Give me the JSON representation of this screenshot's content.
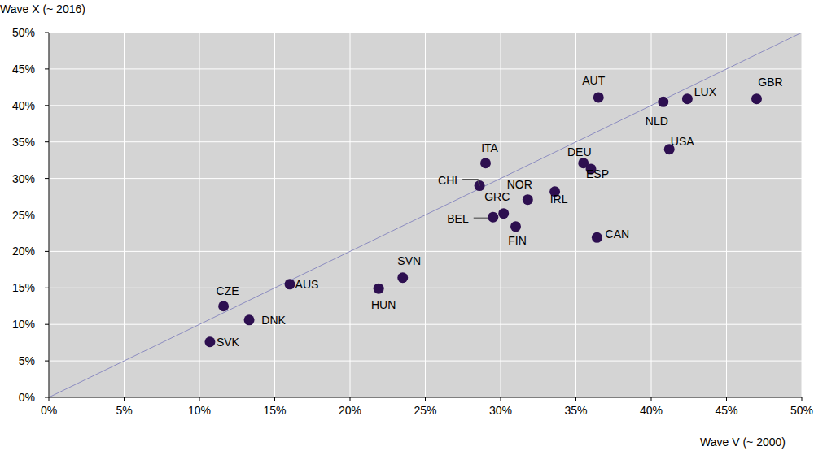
{
  "chart_data": {
    "type": "scatter",
    "x_label": "Wave V (~ 2000)",
    "y_label": "Wave X (~ 2016)",
    "labels": [
      "CZE",
      "SVK",
      "DNK",
      "AUS",
      "HUN",
      "SVN",
      "ITA",
      "CHL",
      "GRC",
      "BEL",
      "FIN",
      "NOR",
      "IRL",
      "DEU",
      "ESP",
      "CAN",
      "AUT",
      "NLD",
      "LUX",
      "USA",
      "GBR"
    ],
    "x": [
      11.6,
      10.7,
      13.3,
      16.0,
      21.9,
      23.5,
      29.0,
      28.6,
      30.2,
      29.5,
      31.0,
      31.8,
      33.6,
      35.5,
      36.0,
      36.4,
      36.5,
      40.8,
      42.4,
      41.2,
      47.0
    ],
    "values": [
      12.5,
      7.6,
      10.6,
      15.5,
      14.9,
      16.4,
      32.1,
      29.0,
      25.2,
      24.7,
      23.4,
      27.1,
      28.2,
      32.1,
      31.3,
      21.9,
      41.1,
      40.5,
      40.9,
      34.0,
      40.9
    ],
    "color": "#2d0f50",
    "marker": "circle",
    "grid": true,
    "xlim": [
      0,
      50
    ],
    "ylim": [
      0,
      50
    ],
    "xticks": [
      {
        "value": 0,
        "label": "0%"
      },
      {
        "value": 5,
        "label": "5%"
      },
      {
        "value": 10,
        "label": "10%"
      },
      {
        "value": 15,
        "label": "15%"
      },
      {
        "value": 20,
        "label": "20%"
      },
      {
        "value": 25,
        "label": "25%"
      },
      {
        "value": 30,
        "label": "30%"
      },
      {
        "value": 35,
        "label": "35%"
      },
      {
        "value": 40,
        "label": "40%"
      },
      {
        "value": 45,
        "label": "45%"
      },
      {
        "value": 50,
        "label": "50%"
      }
    ],
    "yticks": [
      {
        "value": 0,
        "label": "0%"
      },
      {
        "value": 5,
        "label": "5%"
      },
      {
        "value": 10,
        "label": "10%"
      },
      {
        "value": 15,
        "label": "15%"
      },
      {
        "value": 20,
        "label": "20%"
      },
      {
        "value": 25,
        "label": "25%"
      },
      {
        "value": 30,
        "label": "30%"
      },
      {
        "value": 35,
        "label": "35%"
      },
      {
        "value": 40,
        "label": "40%"
      },
      {
        "value": 45,
        "label": "45%"
      },
      {
        "value": 50,
        "label": "50%"
      }
    ]
  }
}
